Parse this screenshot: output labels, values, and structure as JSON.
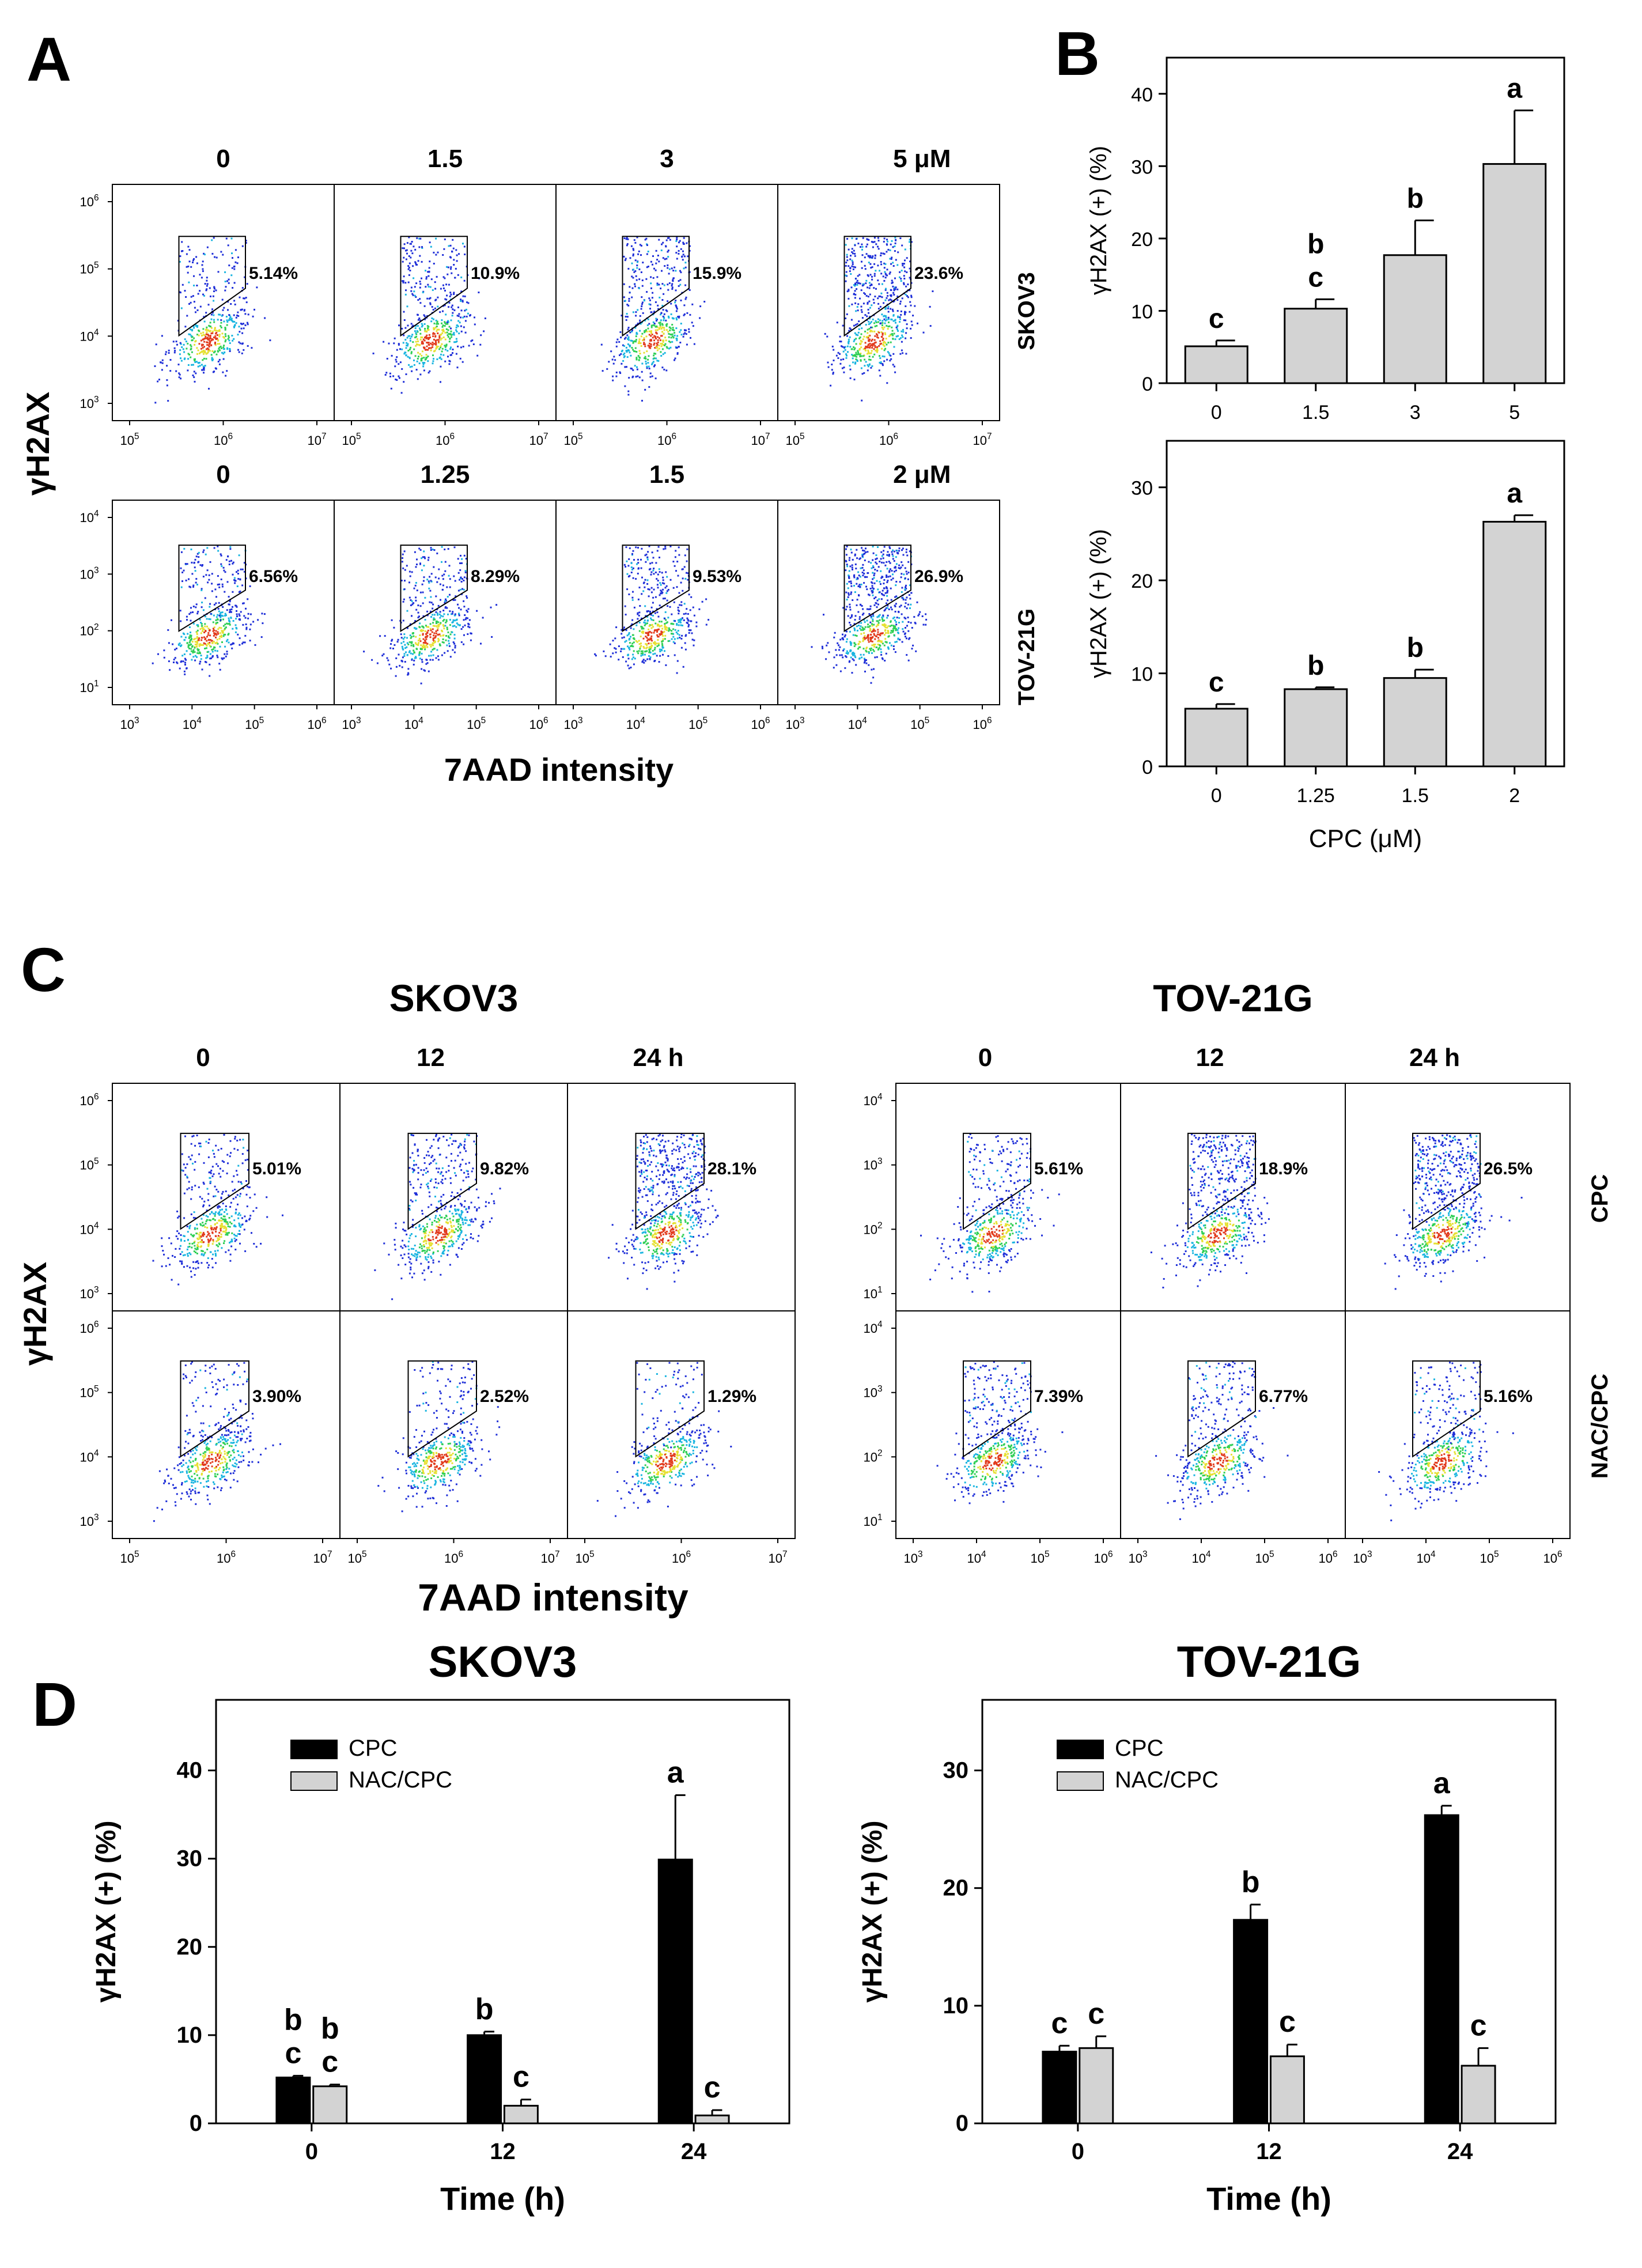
{
  "panels": {
    "a": {
      "letter": "A",
      "y_label": "γH2AX",
      "x_label": "7AAD intensity",
      "rows": [
        {
          "conditions": [
            "0",
            "1.5",
            "3",
            "5 μM"
          ],
          "percents": [
            "5.14%",
            "10.9%",
            "15.9%",
            "23.6%"
          ],
          "density": [
            0.25,
            0.45,
            0.6,
            0.9
          ],
          "y_ticks": [
            "10^6",
            "10^5",
            "10^4",
            "10^3"
          ],
          "x_ticks": [
            "10^5",
            "10^6",
            "10^7"
          ]
        },
        {
          "conditions": [
            "0",
            "1.25",
            "1.5",
            "2 μM"
          ],
          "percents": [
            "6.56%",
            "8.29%",
            "9.53%",
            "26.9%"
          ],
          "density": [
            0.3,
            0.35,
            0.4,
            0.9
          ],
          "y_ticks": [
            "10^4",
            "10^3",
            "10^2",
            "10^1"
          ],
          "x_ticks": [
            "10^3",
            "10^4",
            "10^5",
            "10^6"
          ]
        }
      ]
    },
    "b": {
      "letter": "B",
      "shared_x_label": "CPC (μM)"
    },
    "c": {
      "letter": "C",
      "y_label": "γH2AX",
      "x_label": "7AAD intensity",
      "row_labels": [
        "CPC",
        "NAC/CPC"
      ],
      "groups": [
        {
          "title": "SKOV3",
          "times": [
            "0",
            "12",
            "24 h"
          ],
          "percents": [
            [
              "5.01%",
              "9.82%",
              "28.1%"
            ],
            [
              "3.90%",
              "2.52%",
              "1.29%"
            ]
          ],
          "density": [
            [
              0.25,
              0.45,
              0.9
            ],
            [
              0.2,
              0.15,
              0.1
            ]
          ],
          "y_ticks": [
            "10^6",
            "10^5",
            "10^4",
            "10^3"
          ],
          "x_ticks": [
            "10^5",
            "10^6",
            "10^7"
          ]
        },
        {
          "title": "TOV-21G",
          "times": [
            "0",
            "12",
            "24 h"
          ],
          "percents": [
            [
              "5.61%",
              "18.9%",
              "26.5%"
            ],
            [
              "7.39%",
              "6.77%",
              "5.16%"
            ]
          ],
          "density": [
            [
              0.3,
              0.75,
              0.9
            ],
            [
              0.35,
              0.3,
              0.25
            ]
          ],
          "y_ticks": [
            "10^4",
            "10^3",
            "10^2",
            "10^1"
          ],
          "x_ticks": [
            "10^3",
            "10^4",
            "10^5",
            "10^6"
          ]
        }
      ]
    },
    "d": {
      "letter": "D"
    }
  },
  "colors": {
    "bar_gray": "#d3d3d3",
    "bar_black": "#000000",
    "facs_blue": "#1f2fd8",
    "facs_cyan": "#19b5e0",
    "facs_green": "#2fcf55",
    "facs_yellow": "#e6e032",
    "facs_red": "#e23a1c"
  },
  "chart_data": [
    {
      "id": "b-skov3",
      "type": "bar",
      "cell_line": "SKOV3",
      "categories": [
        "0",
        "1.5",
        "3",
        "5"
      ],
      "values": [
        5.1,
        10.3,
        17.7,
        30.3
      ],
      "errors": [
        0.8,
        1.3,
        4.8,
        7.4
      ],
      "letters": [
        [
          "c"
        ],
        [
          "b",
          "c"
        ],
        [
          "b"
        ],
        [
          "a"
        ]
      ],
      "ylabel": "γH2AX (+) (%)",
      "xlabel": "",
      "ylim": [
        0,
        45
      ],
      "yticks": [
        0,
        10,
        20,
        30,
        40
      ]
    },
    {
      "id": "b-tov21g",
      "type": "bar",
      "cell_line": "TOV-21G",
      "categories": [
        "0",
        "1.25",
        "1.5",
        "2"
      ],
      "values": [
        6.2,
        8.3,
        9.5,
        26.3
      ],
      "errors": [
        0.5,
        0.2,
        0.9,
        0.7
      ],
      "letters": [
        [
          "c"
        ],
        [
          "b"
        ],
        [
          "b"
        ],
        [
          "a"
        ]
      ],
      "ylabel": "γH2AX (+) (%)",
      "xlabel": "CPC (μM)",
      "ylim": [
        0,
        35
      ],
      "yticks": [
        0,
        10,
        20,
        30
      ]
    },
    {
      "id": "d-skov3",
      "type": "bar",
      "title": "SKOV3",
      "categories": [
        "0",
        "12",
        "24"
      ],
      "series": [
        {
          "name": "CPC",
          "values": [
            5.2,
            10.0,
            29.9
          ],
          "errors": [
            0.2,
            0.4,
            7.3
          ],
          "letters": [
            [
              "b",
              "c"
            ],
            [
              "b"
            ],
            [
              "a"
            ]
          ]
        },
        {
          "name": "NAC/CPC",
          "values": [
            4.2,
            2.0,
            0.9
          ],
          "errors": [
            0.2,
            0.7,
            0.6
          ],
          "letters": [
            [
              "b",
              "c"
            ],
            [
              "c"
            ],
            [
              "c"
            ]
          ]
        }
      ],
      "ylabel": "γH2AX (+) (%)",
      "xlabel": "Time (h)",
      "ylim": [
        0,
        48
      ],
      "yticks": [
        0,
        10,
        20,
        30,
        40
      ]
    },
    {
      "id": "d-tov21g",
      "type": "bar",
      "title": "TOV-21G",
      "categories": [
        "0",
        "12",
        "24"
      ],
      "series": [
        {
          "name": "CPC",
          "values": [
            6.1,
            17.3,
            26.2
          ],
          "errors": [
            0.5,
            1.3,
            0.8
          ],
          "letters": [
            [
              "c"
            ],
            [
              "b"
            ],
            [
              "a"
            ]
          ]
        },
        {
          "name": "NAC/CPC",
          "values": [
            6.4,
            5.7,
            4.9
          ],
          "errors": [
            1.0,
            1.0,
            1.5
          ],
          "letters": [
            [
              "c"
            ],
            [
              "c"
            ],
            [
              "c"
            ]
          ]
        }
      ],
      "ylabel": "γH2AX (+) (%)",
      "xlabel": "Time (h)",
      "ylim": [
        0,
        36
      ],
      "yticks": [
        0,
        10,
        20,
        30
      ]
    }
  ]
}
